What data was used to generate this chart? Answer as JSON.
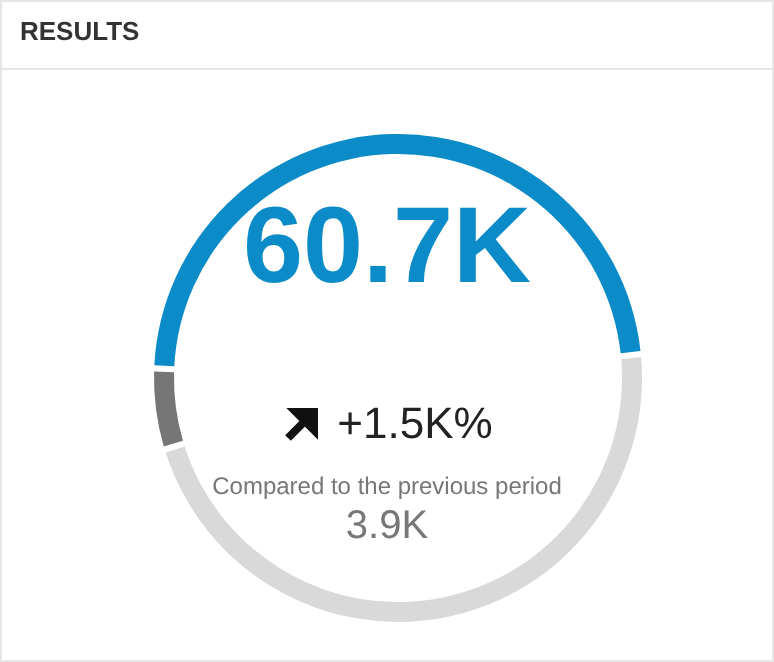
{
  "chart_data": {
    "type": "donut",
    "title": "RESULTS",
    "categories": [
      null,
      null,
      null
    ],
    "values": [
      48,
      47,
      5
    ],
    "colors": [
      "#0b8bc7",
      "#d9d9d9",
      "#767676"
    ],
    "annotations": [
      "60.7K",
      "+1.5K%",
      "Compared to the previous period",
      "3.9K"
    ]
  }
}
